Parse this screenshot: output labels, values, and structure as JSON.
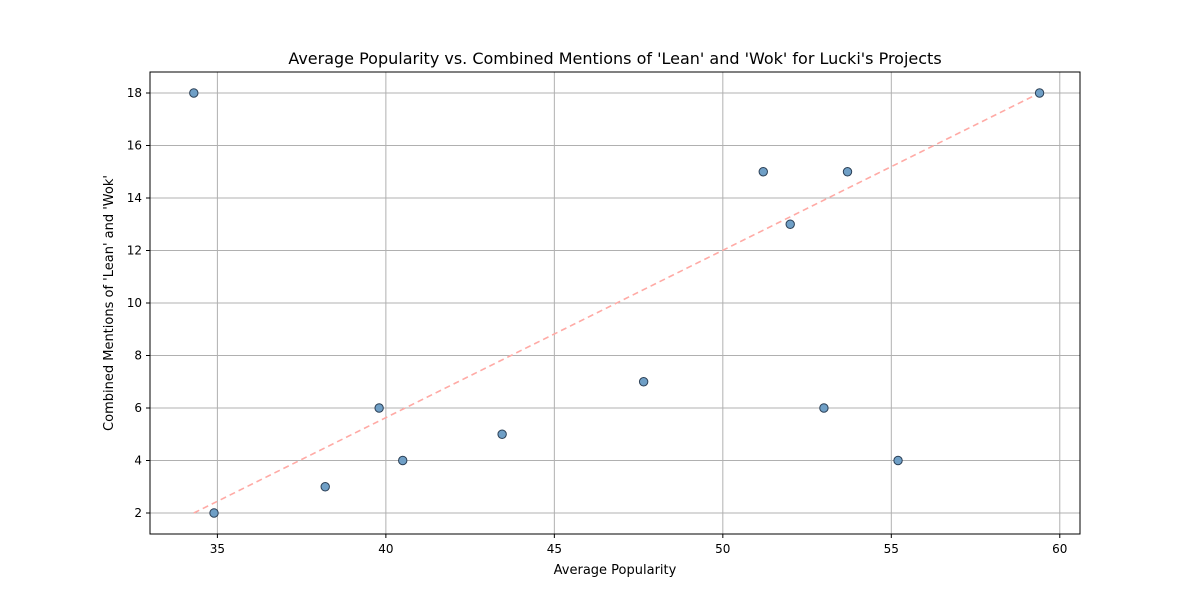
{
  "chart_data": {
    "type": "scatter",
    "title": "Average Popularity vs. Combined Mentions of 'Lean' and 'Wok' for Lucki's Projects",
    "xlabel": "Average Popularity",
    "ylabel": "Combined Mentions of 'Lean' and 'Wok'",
    "xlim": [
      33.0,
      60.6
    ],
    "ylim": [
      1.2,
      18.8
    ],
    "xticks": [
      35,
      40,
      45,
      50,
      55,
      60
    ],
    "yticks": [
      2,
      4,
      6,
      8,
      10,
      12,
      14,
      16,
      18
    ],
    "grid": true,
    "legend": "none",
    "points": [
      {
        "x": 34.3,
        "y": 18
      },
      {
        "x": 34.9,
        "y": 2
      },
      {
        "x": 38.2,
        "y": 3
      },
      {
        "x": 39.8,
        "y": 6
      },
      {
        "x": 40.5,
        "y": 4
      },
      {
        "x": 43.45,
        "y": 5
      },
      {
        "x": 47.65,
        "y": 7
      },
      {
        "x": 51.2,
        "y": 15
      },
      {
        "x": 52.0,
        "y": 13
      },
      {
        "x": 53.0,
        "y": 6
      },
      {
        "x": 53.7,
        "y": 15
      },
      {
        "x": 55.2,
        "y": 4
      },
      {
        "x": 59.4,
        "y": 18
      }
    ],
    "trendline": {
      "x": [
        34.3,
        59.4
      ],
      "y": [
        2,
        18
      ],
      "style": "dashed"
    },
    "colors": {
      "point_fill": "#6f9fc6",
      "point_edge": "#2b3f55",
      "trendline": "#ffaaa5",
      "grid": "#b0b0b0",
      "frame": "#000000"
    }
  }
}
